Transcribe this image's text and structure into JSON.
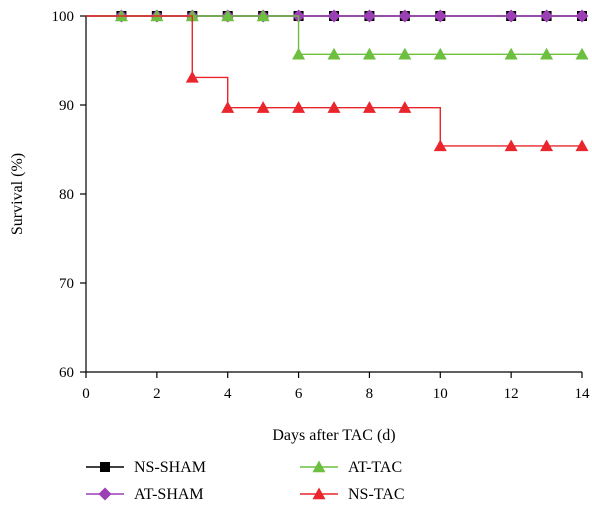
{
  "chart_data": {
    "type": "line",
    "step": true,
    "xlabel": "Days after TAC (d)",
    "ylabel": "Survival (%)",
    "xlim": [
      0,
      14
    ],
    "ylim": [
      60,
      100
    ],
    "xticks": [
      0,
      2,
      4,
      6,
      8,
      10,
      12,
      14
    ],
    "yticks": [
      60,
      70,
      80,
      90,
      100
    ],
    "grid": false,
    "legend_position": "bottom",
    "series": [
      {
        "name": "NS-SHAM",
        "color": "#000000",
        "marker": "square",
        "x": [
          0,
          1,
          2,
          3,
          4,
          5,
          6,
          7,
          8,
          9,
          10,
          12,
          13,
          14
        ],
        "y": [
          100,
          100,
          100,
          100,
          100,
          100,
          100,
          100,
          100,
          100,
          100,
          100,
          100,
          100
        ],
        "marker_x": [
          1,
          2,
          3,
          4,
          5,
          6,
          7,
          8,
          9,
          10,
          12,
          13,
          14
        ]
      },
      {
        "name": "AT-SHAM",
        "color": "#9b3fb5",
        "marker": "diamond",
        "x": [
          0,
          1,
          2,
          3,
          4,
          5,
          6,
          7,
          8,
          9,
          10,
          12,
          13,
          14
        ],
        "y": [
          100,
          100,
          100,
          100,
          100,
          100,
          100,
          100,
          100,
          100,
          100,
          100,
          100,
          100
        ],
        "marker_x": [
          1,
          2,
          3,
          4,
          5,
          6,
          7,
          8,
          9,
          10,
          12,
          13,
          14
        ]
      },
      {
        "name": "AT-TAC",
        "color": "#6cbf3f",
        "marker": "triangle",
        "x": [
          0,
          1,
          2,
          3,
          4,
          5,
          6,
          7,
          8,
          9,
          10,
          12,
          13,
          14
        ],
        "y": [
          100,
          100,
          100,
          100,
          100,
          100,
          95.7,
          95.7,
          95.7,
          95.7,
          95.7,
          95.7,
          95.7,
          95.7
        ],
        "marker_x": [
          1,
          2,
          3,
          4,
          5,
          6,
          7,
          8,
          9,
          10,
          12,
          13,
          14
        ]
      },
      {
        "name": "NS-TAC",
        "color": "#e8262c",
        "marker": "triangle",
        "x": [
          0,
          3,
          4,
          5,
          6,
          7,
          8,
          9,
          10,
          12,
          13,
          14
        ],
        "y": [
          100,
          93.1,
          89.7,
          89.7,
          89.7,
          89.7,
          89.7,
          89.7,
          85.4,
          85.4,
          85.4,
          85.4
        ],
        "marker_x": [
          3,
          4,
          5,
          6,
          7,
          8,
          9,
          10,
          12,
          13,
          14
        ]
      }
    ],
    "legend": [
      {
        "name": "NS-SHAM",
        "column": 0,
        "row": 0
      },
      {
        "name": "AT-SHAM",
        "column": 0,
        "row": 1
      },
      {
        "name": "AT-TAC",
        "column": 1,
        "row": 0
      },
      {
        "name": "NS-TAC",
        "column": 1,
        "row": 1
      }
    ]
  }
}
